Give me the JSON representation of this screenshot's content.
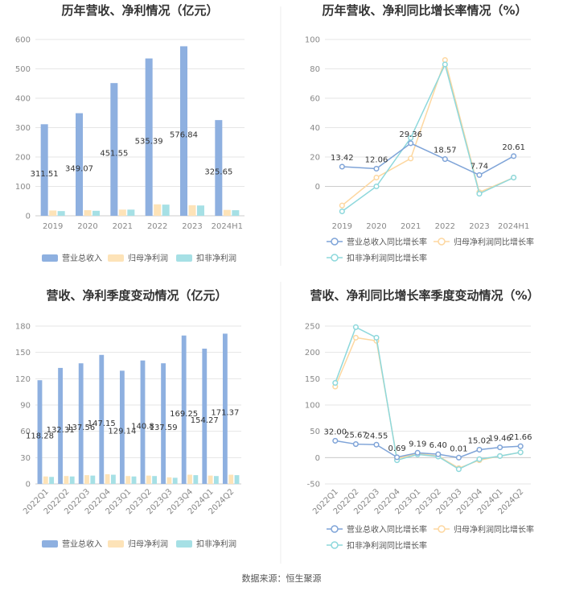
{
  "chart_data": [
    {
      "type": "bar",
      "title": "历年营收、净利情况（亿元）",
      "categories": [
        "2019",
        "2020",
        "2021",
        "2022",
        "2023",
        "2024H1"
      ],
      "ylim": [
        0,
        600
      ],
      "yticks": [
        0,
        100,
        200,
        300,
        400,
        500,
        600
      ],
      "grid": true,
      "legend": "bottom",
      "series": [
        {
          "name": "营业总收入",
          "color": "#8eb0e0",
          "values": [
            311.51,
            349.07,
            451.55,
            535.39,
            576.84,
            325.65
          ],
          "labels": [
            "311.51",
            "349.07",
            "451.55",
            "535.39",
            "576.84",
            "325.65"
          ]
        },
        {
          "name": "归母净利润",
          "color": "#fde3b8",
          "values": [
            18,
            19,
            21,
            39,
            36,
            20
          ]
        },
        {
          "name": "扣非净利润",
          "color": "#a6e0e5",
          "values": [
            16,
            17,
            21,
            38,
            35,
            19
          ]
        }
      ]
    },
    {
      "type": "line",
      "title": "历年营收、净利同比增长率情况（%）",
      "categories": [
        "2019",
        "2020",
        "2021",
        "2022",
        "2023",
        "2024H1"
      ],
      "ylim": [
        -20,
        100
      ],
      "yticks": [
        0,
        20,
        40,
        60,
        80,
        100
      ],
      "grid": true,
      "legend": "bottom",
      "series": [
        {
          "name": "营业总收入同比增长率",
          "color": "#7fa4d8",
          "values": [
            13.42,
            12.06,
            29.36,
            18.57,
            7.74,
            20.61
          ],
          "labels": [
            "13.42",
            "12.06",
            "29.36",
            "18.57",
            "7.74",
            "20.61"
          ]
        },
        {
          "name": "归母净利润同比增长率",
          "color": "#fdd7a0",
          "values": [
            -13,
            6,
            19,
            86,
            -4,
            6
          ]
        },
        {
          "name": "扣非净利润同比增长率",
          "color": "#8dd8dc",
          "values": [
            -17,
            0,
            33,
            83,
            -5,
            6
          ]
        }
      ]
    },
    {
      "type": "bar",
      "title": "营收、净利季度变动情况（亿元）",
      "categories": [
        "2022Q1",
        "2022Q2",
        "2022Q3",
        "2022Q4",
        "2023Q1",
        "2023Q2",
        "2023Q3",
        "2023Q4",
        "2024Q1",
        "2024Q2"
      ],
      "ylim": [
        0,
        180
      ],
      "yticks": [
        0,
        30,
        60,
        90,
        120,
        150,
        180
      ],
      "grid": true,
      "legend": "bottom",
      "series": [
        {
          "name": "营业总收入",
          "color": "#8eb0e0",
          "values": [
            118.28,
            132.31,
            137.56,
            147.15,
            129.14,
            140.8,
            137.59,
            169.25,
            154.27,
            171.37
          ],
          "labels": [
            "118.28",
            "132.31",
            "137.56",
            "147.15",
            "129.14",
            "140.8",
            "137.59",
            "169.25",
            "154.27",
            "171.37"
          ]
        },
        {
          "name": "归母净利润",
          "color": "#fde3b8",
          "values": [
            8.5,
            9,
            10,
            11,
            9,
            9.5,
            7.5,
            10.5,
            9.5,
            10.5
          ]
        },
        {
          "name": "扣非净利润",
          "color": "#a6e0e5",
          "values": [
            8,
            8.5,
            9.5,
            10.5,
            8.5,
            9,
            7,
            10,
            9,
            10
          ]
        }
      ]
    },
    {
      "type": "line",
      "title": "营收、净利同比增长率季度变动情况（%）",
      "categories": [
        "2022Q1",
        "2022Q2",
        "2022Q3",
        "2022Q4",
        "2023Q1",
        "2023Q2",
        "2023Q3",
        "2023Q4",
        "2024Q1",
        "2024Q2"
      ],
      "ylim": [
        -50,
        250
      ],
      "yticks": [
        -50,
        0,
        50,
        100,
        150,
        200,
        250
      ],
      "grid": true,
      "legend": "bottom",
      "series": [
        {
          "name": "营业总收入同比增长率",
          "color": "#7fa4d8",
          "values": [
            32.0,
            25.67,
            24.55,
            0.69,
            9.19,
            6.4,
            0.01,
            15.02,
            19.46,
            21.66
          ],
          "labels": [
            "32.00",
            "25.67",
            "24.55",
            "0.69",
            "9.19",
            "6.40",
            "0.01",
            "15.02",
            "19.46",
            "21.66"
          ]
        },
        {
          "name": "归母净利润同比增长率",
          "color": "#fdd7a0",
          "values": [
            135,
            228,
            222,
            -2,
            8,
            3,
            -20,
            -5,
            3,
            10
          ]
        },
        {
          "name": "扣非净利润同比增长率",
          "color": "#8dd8dc",
          "values": [
            142,
            248,
            228,
            -5,
            6,
            2,
            -22,
            -3,
            3,
            10
          ]
        }
      ]
    }
  ],
  "source": "数据来源：恒生聚源"
}
